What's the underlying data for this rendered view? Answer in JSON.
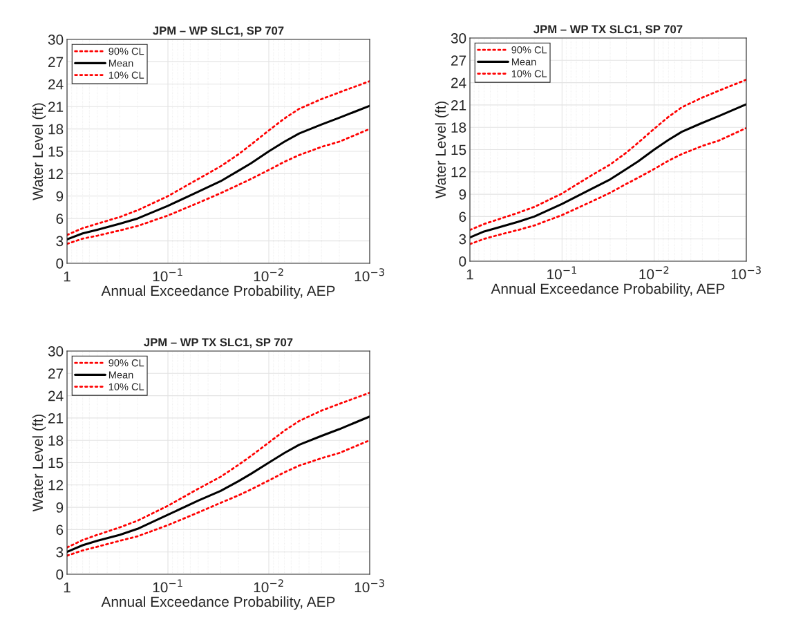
{
  "chart_data": [
    {
      "type": "line",
      "title": "JPM – WP SLC1, SP 707",
      "xlabel": "Annual Exceedance Probability, AEP",
      "ylabel": "Water Level (ft)",
      "xlim": [
        1,
        0.001
      ],
      "xticks": [
        {
          "value": 1,
          "label": "1"
        },
        {
          "value": 0.1,
          "label": "10$^{−1}$"
        },
        {
          "value": 0.01,
          "label": "10$^{−2}$"
        },
        {
          "value": 0.001,
          "label": "10$^{−3}$"
        }
      ],
      "ylim": [
        0,
        30
      ],
      "yticks": [
        0,
        3,
        6,
        9,
        12,
        15,
        18,
        21,
        24,
        27,
        30
      ],
      "log": "x",
      "grid": true,
      "legend": "top left",
      "x": [
        1,
        0.7,
        0.5,
        0.3,
        0.2,
        0.1,
        0.05,
        0.03,
        0.02,
        0.015,
        0.01,
        0.007,
        0.005,
        0.003,
        0.002,
        0.001
      ],
      "series": [
        {
          "name": "90% CL",
          "color": "#ff0000",
          "line_style": "dotted",
          "values": [
            3.8,
            4.7,
            5.3,
            6.2,
            7.1,
            9.0,
            11.3,
            13.0,
            14.6,
            15.9,
            17.8,
            19.4,
            20.7,
            22.0,
            22.9,
            24.4
          ]
        },
        {
          "name": "Mean",
          "color": "#000000",
          "line_style": "solid",
          "values": [
            3.2,
            4.0,
            4.5,
            5.3,
            6.0,
            7.7,
            9.6,
            11.0,
            12.4,
            13.4,
            15.0,
            16.3,
            17.4,
            18.6,
            19.5,
            21.1
          ]
        },
        {
          "name": "10% CL",
          "color": "#ff0000",
          "line_style": "dotted",
          "values": [
            2.6,
            3.3,
            3.7,
            4.4,
            5.0,
            6.4,
            8.1,
            9.4,
            10.5,
            11.3,
            12.5,
            13.6,
            14.5,
            15.6,
            16.3,
            18.0
          ]
        }
      ]
    },
    {
      "type": "line",
      "title": "JPM – WP TX SLC1, SP 707",
      "xlabel": "Annual Exceedance Probability, AEP",
      "ylabel": "Water Level (ft)",
      "xlim": [
        1,
        0.001
      ],
      "xticks": [
        {
          "value": 1,
          "label": "1"
        },
        {
          "value": 0.1,
          "label": "10$^{−1}$"
        },
        {
          "value": 0.01,
          "label": "10$^{−2}$"
        },
        {
          "value": 0.001,
          "label": "10$^{−3}$"
        }
      ],
      "ylim": [
        0,
        30
      ],
      "yticks": [
        0,
        3,
        6,
        9,
        12,
        15,
        18,
        21,
        24,
        27,
        30
      ],
      "log": "x",
      "grid": true,
      "legend": "top left",
      "x": [
        1,
        0.7,
        0.5,
        0.3,
        0.2,
        0.1,
        0.05,
        0.03,
        0.02,
        0.015,
        0.01,
        0.007,
        0.005,
        0.003,
        0.002,
        0.001
      ],
      "series": [
        {
          "name": "90% CL",
          "color": "#ff0000",
          "line_style": "dotted",
          "values": [
            4.2,
            5.0,
            5.6,
            6.5,
            7.3,
            9.1,
            11.4,
            13.0,
            14.6,
            15.9,
            17.8,
            19.4,
            20.7,
            22.0,
            22.9,
            24.4
          ]
        },
        {
          "name": "Mean",
          "color": "#000000",
          "line_style": "solid",
          "values": [
            3.2,
            4.0,
            4.5,
            5.3,
            6.0,
            7.7,
            9.6,
            11.0,
            12.4,
            13.4,
            15.0,
            16.3,
            17.4,
            18.6,
            19.5,
            21.1
          ]
        },
        {
          "name": "10% CL",
          "color": "#ff0000",
          "line_style": "dotted",
          "values": [
            2.3,
            3.0,
            3.5,
            4.2,
            4.8,
            6.2,
            7.9,
            9.2,
            10.4,
            11.2,
            12.4,
            13.5,
            14.4,
            15.5,
            16.2,
            17.9
          ]
        }
      ]
    },
    {
      "type": "line",
      "title": "JPM – WP TX SLC1, SP 707",
      "xlabel": "Annual Exceedance Probability, AEP",
      "ylabel": "Water Level (ft)",
      "xlim": [
        1,
        0.001
      ],
      "xticks": [
        {
          "value": 1,
          "label": "1"
        },
        {
          "value": 0.1,
          "label": "10$^{−1}$"
        },
        {
          "value": 0.01,
          "label": "10$^{−2}$"
        },
        {
          "value": 0.001,
          "label": "10$^{−3}$"
        }
      ],
      "ylim": [
        0,
        30
      ],
      "yticks": [
        0,
        3,
        6,
        9,
        12,
        15,
        18,
        21,
        24,
        27,
        30
      ],
      "log": "x",
      "grid": true,
      "legend": "top left",
      "x": [
        1,
        0.7,
        0.5,
        0.3,
        0.2,
        0.1,
        0.05,
        0.03,
        0.02,
        0.015,
        0.01,
        0.007,
        0.005,
        0.003,
        0.002,
        0.001
      ],
      "series": [
        {
          "name": "90% CL",
          "color": "#ff0000",
          "line_style": "dotted",
          "values": [
            3.6,
            4.6,
            5.3,
            6.3,
            7.2,
            9.2,
            11.5,
            13.1,
            14.7,
            15.9,
            17.7,
            19.3,
            20.6,
            22.0,
            22.9,
            24.4
          ]
        },
        {
          "name": "Mean",
          "color": "#000000",
          "line_style": "solid",
          "values": [
            3.0,
            3.9,
            4.5,
            5.3,
            6.1,
            8.0,
            9.9,
            11.2,
            12.5,
            13.5,
            15.0,
            16.3,
            17.4,
            18.6,
            19.5,
            21.2
          ]
        },
        {
          "name": "10% CL",
          "color": "#ff0000",
          "line_style": "dotted",
          "values": [
            2.5,
            3.2,
            3.7,
            4.5,
            5.1,
            6.6,
            8.3,
            9.6,
            10.6,
            11.4,
            12.6,
            13.7,
            14.6,
            15.6,
            16.3,
            18.0
          ]
        }
      ]
    }
  ]
}
